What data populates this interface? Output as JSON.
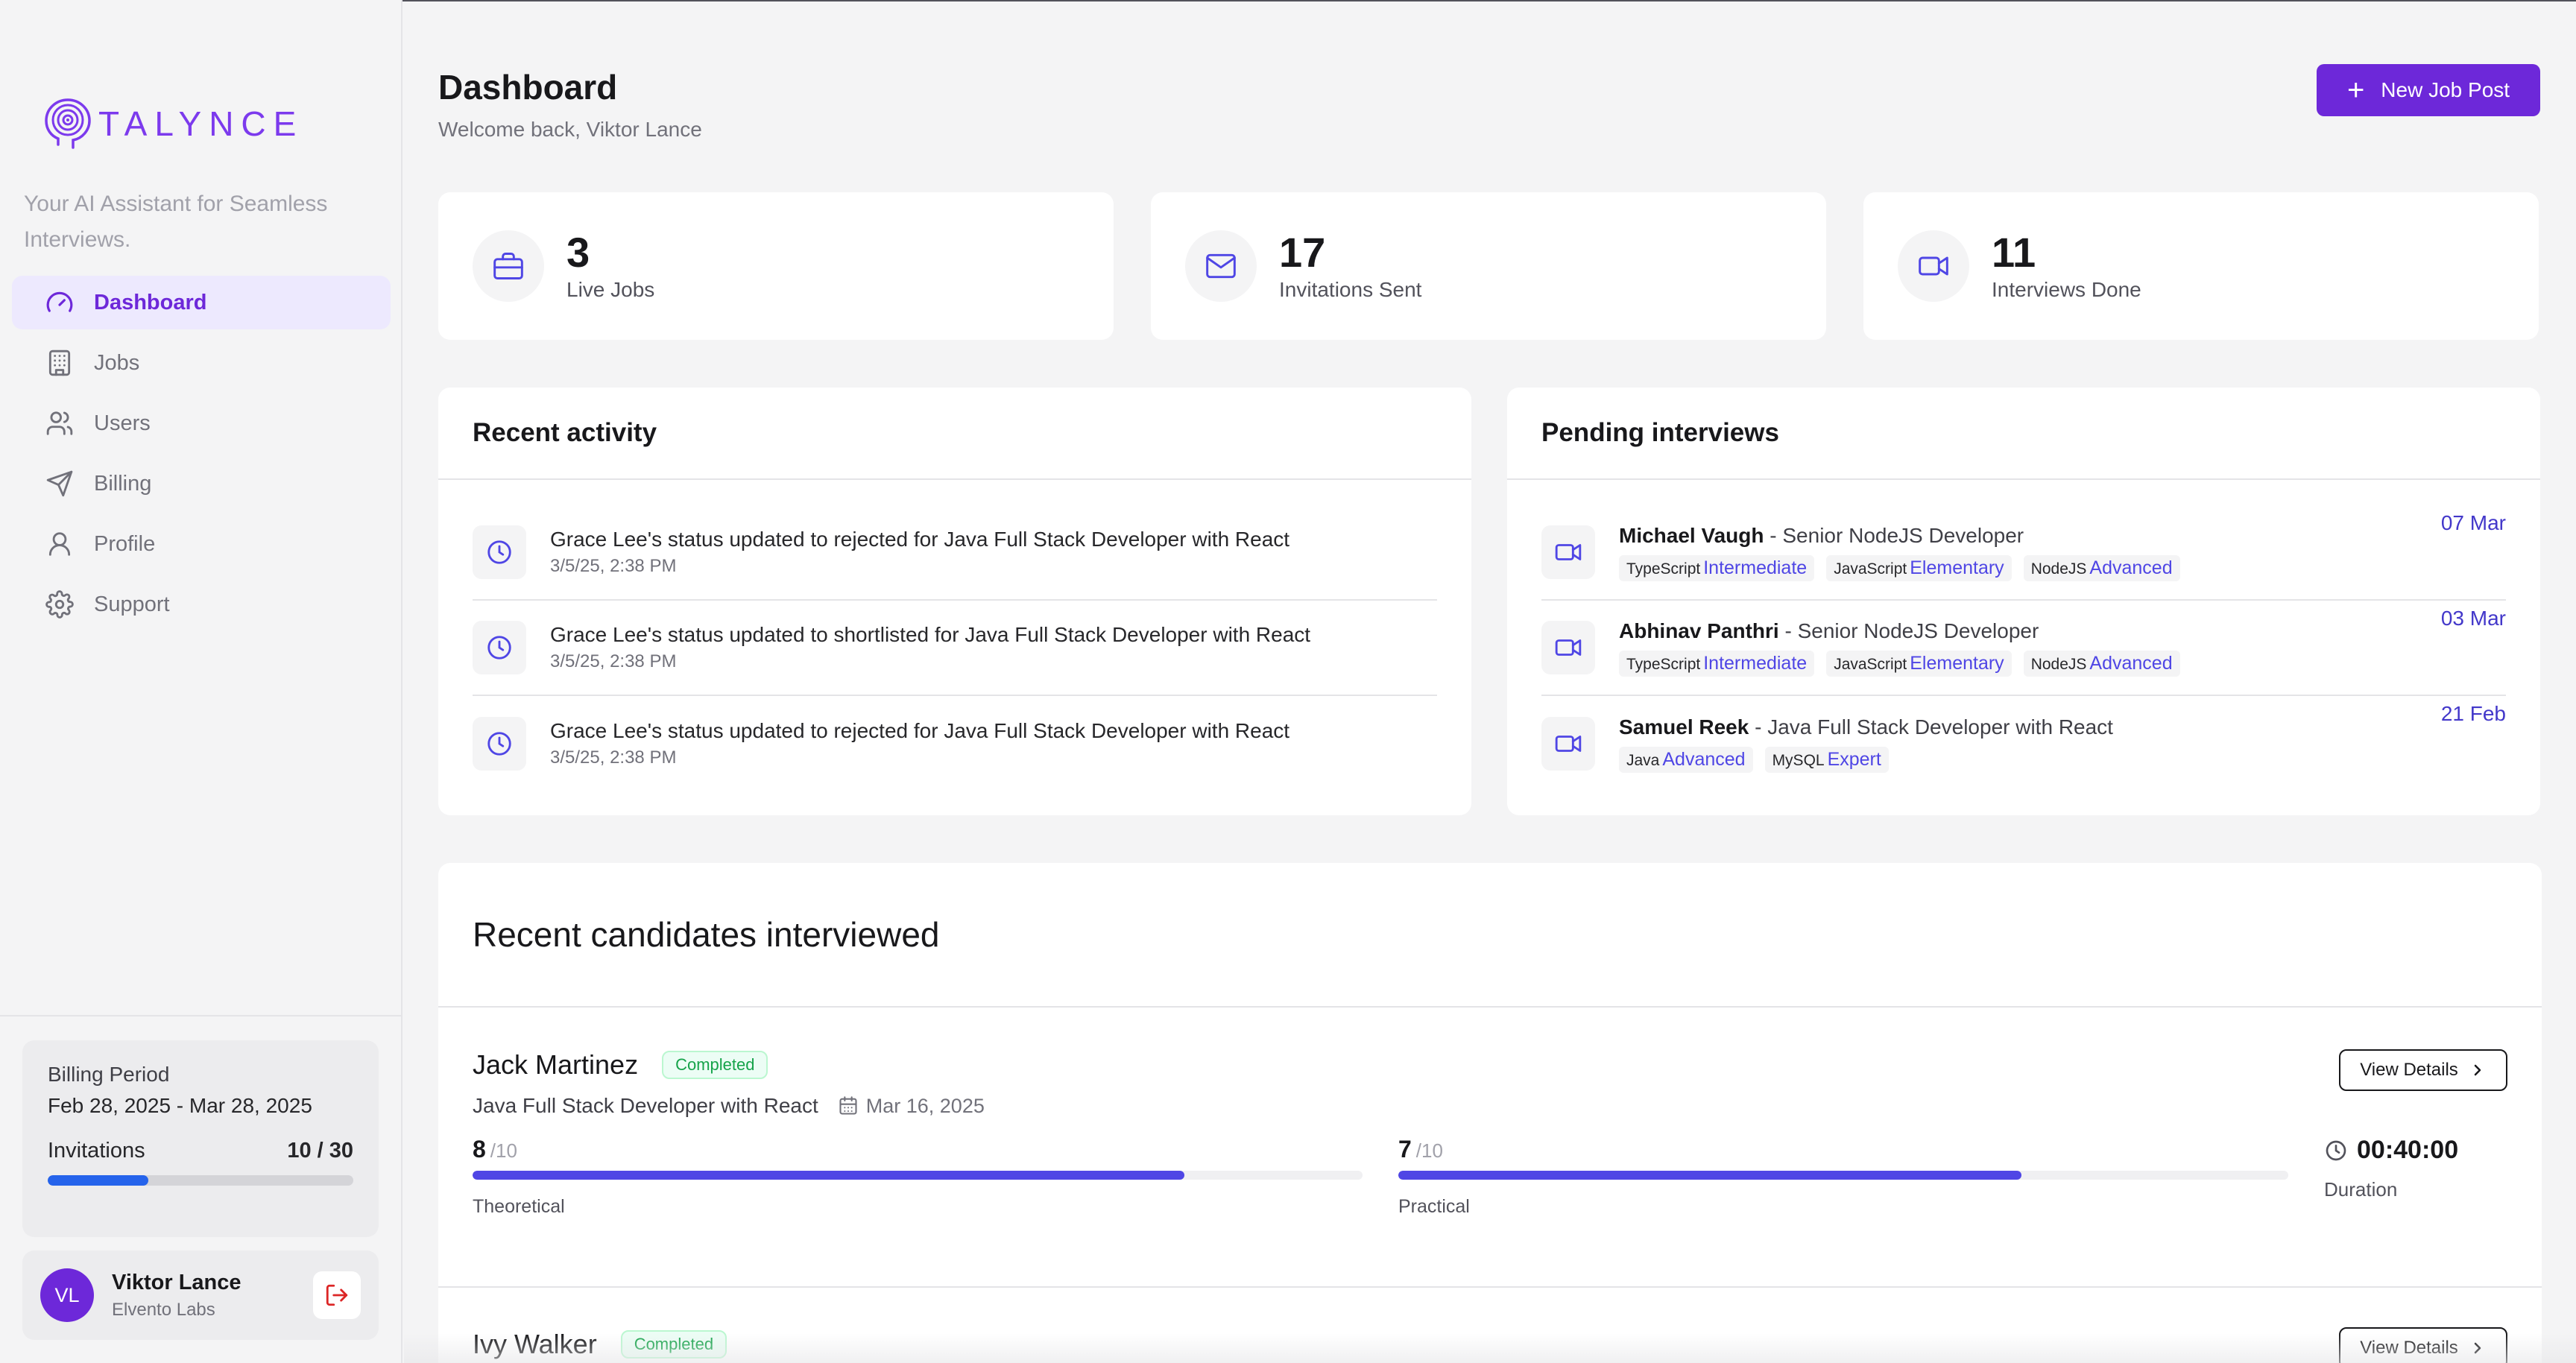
{
  "brand": {
    "name": "TALYNCE",
    "tagline": "Your AI Assistant for Seamless Interviews.",
    "accent": "#6d28d9"
  },
  "nav": [
    {
      "label": "Dashboard",
      "icon": "gauge-icon",
      "active": true
    },
    {
      "label": "Jobs",
      "icon": "building-icon",
      "active": false
    },
    {
      "label": "Users",
      "icon": "users-icon",
      "active": false
    },
    {
      "label": "Billing",
      "icon": "send-icon",
      "active": false
    },
    {
      "label": "Profile",
      "icon": "user-icon",
      "active": false
    },
    {
      "label": "Support",
      "icon": "gear-icon",
      "active": false
    }
  ],
  "billing": {
    "title": "Billing Period",
    "range": "Feb 28, 2025 - Mar 28, 2025",
    "label": "Invitations",
    "count": "10 / 30",
    "progress": 0.33
  },
  "user": {
    "initials": "VL",
    "name": "Viktor Lance",
    "org": "Elvento Labs"
  },
  "header": {
    "title": "Dashboard",
    "subtitle": "Welcome back, Viktor Lance",
    "new_button": "New Job Post"
  },
  "stats": [
    {
      "value": "3",
      "label": "Live Jobs",
      "icon": "briefcase-icon"
    },
    {
      "value": "17",
      "label": "Invitations Sent",
      "icon": "mail-icon"
    },
    {
      "value": "11",
      "label": "Interviews Done",
      "icon": "video-icon"
    }
  ],
  "activity": {
    "title": "Recent activity",
    "items": [
      {
        "text": "Grace Lee's status updated to rejected for Java Full Stack Developer with React",
        "time": "3/5/25, 2:38 PM"
      },
      {
        "text": "Grace Lee's status updated to shortlisted for Java Full Stack Developer with React",
        "time": "3/5/25, 2:38 PM"
      },
      {
        "text": "Grace Lee's status updated to rejected for Java Full Stack Developer with React",
        "time": "3/5/25, 2:38 PM"
      }
    ]
  },
  "pending": {
    "title": "Pending interviews",
    "items": [
      {
        "name": "Michael Vaugh",
        "role": " - Senior NodeJS Developer",
        "date": "07 Mar",
        "tags": [
          {
            "skill": "TypeScript",
            "level": "Intermediate"
          },
          {
            "skill": "JavaScript",
            "level": "Elementary"
          },
          {
            "skill": "NodeJS",
            "level": "Advanced"
          }
        ]
      },
      {
        "name": "Abhinav Panthri",
        "role": " - Senior NodeJS Developer",
        "date": "03 Mar",
        "tags": [
          {
            "skill": "TypeScript",
            "level": "Intermediate"
          },
          {
            "skill": "JavaScript",
            "level": "Elementary"
          },
          {
            "skill": "NodeJS",
            "level": "Advanced"
          }
        ]
      },
      {
        "name": "Samuel Reek",
        "role": " - Java Full Stack Developer with React",
        "date": "21 Feb",
        "tags": [
          {
            "skill": "Java",
            "level": "Advanced"
          },
          {
            "skill": "MySQL",
            "level": "Expert"
          }
        ]
      }
    ]
  },
  "candidates": {
    "title": "Recent candidates interviewed",
    "view_label": "View Details",
    "items": [
      {
        "name": "Jack Martinez",
        "status": "Completed",
        "role": "Java Full Stack Developer with React",
        "date": "Mar 16, 2025",
        "theoretical": {
          "score": "8",
          "den": "/10",
          "label": "Theoretical",
          "fraction": 0.8
        },
        "practical": {
          "score": "7",
          "den": "/10",
          "label": "Practical",
          "fraction": 0.7
        },
        "duration": "00:40:00",
        "duration_label": "Duration"
      },
      {
        "name": "Ivy Walker",
        "status": "Completed"
      }
    ]
  }
}
